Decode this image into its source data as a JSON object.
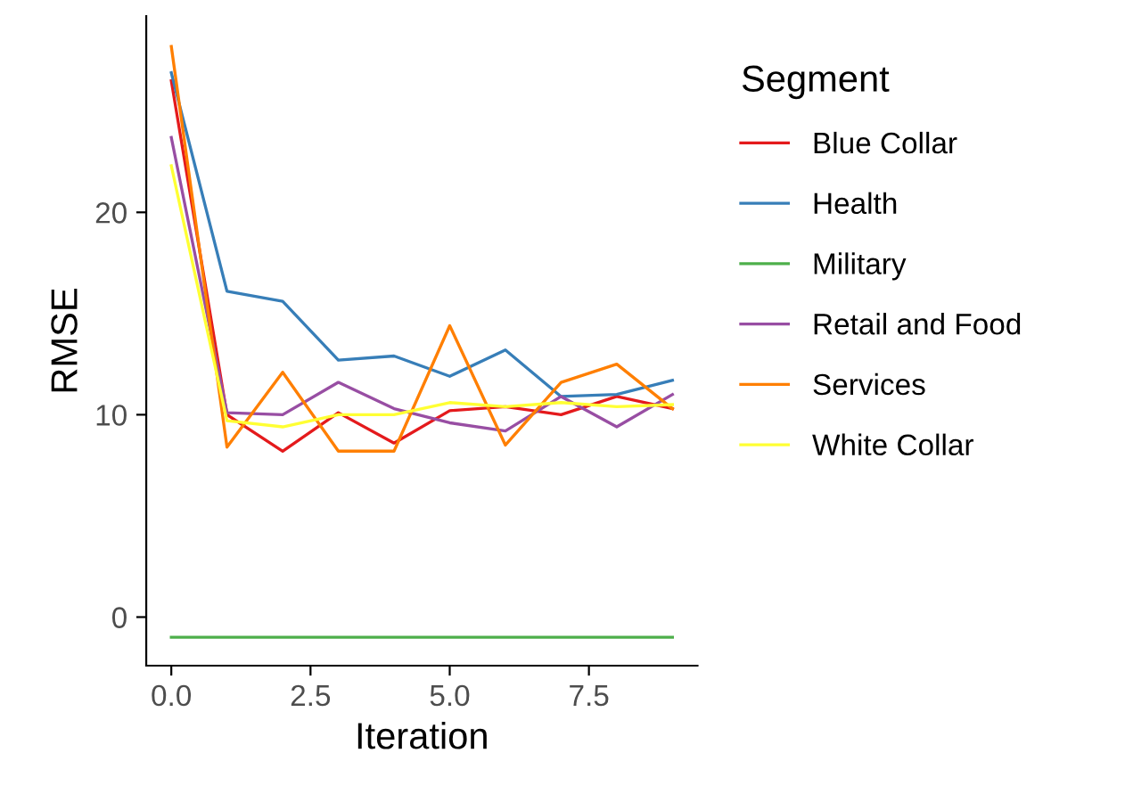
{
  "chart_data": {
    "type": "line",
    "xlabel": "Iteration",
    "ylabel": "RMSE",
    "legend_title": "Segment",
    "legend": "right",
    "grid": false,
    "x": [
      0,
      1,
      2,
      3,
      4,
      5,
      6,
      7,
      8,
      9
    ],
    "xlim": [
      -0.45,
      9.45
    ],
    "xticks": [
      {
        "value": 0,
        "label": "0.0"
      },
      2.5,
      {
        "value": 5,
        "label": "5.0"
      },
      7.5
    ],
    "ylim": [
      -2.4,
      29.7
    ],
    "yticks": [
      0,
      10,
      20
    ],
    "series": [
      {
        "name": "Blue Collar",
        "color": "#e41a1c",
        "values": [
          26.5,
          10.0,
          8.2,
          10.1,
          8.6,
          10.2,
          10.4,
          10.0,
          10.9,
          10.3
        ]
      },
      {
        "name": "Health",
        "color": "#377eb8",
        "values": [
          26.9,
          16.1,
          15.6,
          12.7,
          12.9,
          11.9,
          13.2,
          10.9,
          11.0,
          11.7
        ]
      },
      {
        "name": "Military",
        "color": "#4daf4a",
        "values": [
          -1.0,
          -1.0,
          -1.0,
          -1.0,
          -1.0,
          -1.0,
          -1.0,
          -1.0,
          -1.0,
          -1.0
        ]
      },
      {
        "name": "Retail and Food",
        "color": "#984ea3",
        "values": [
          23.7,
          10.1,
          10.0,
          11.6,
          10.3,
          9.6,
          9.2,
          10.9,
          9.4,
          11.0
        ]
      },
      {
        "name": "Services",
        "color": "#ff7f00",
        "values": [
          28.2,
          8.4,
          12.1,
          8.2,
          8.2,
          14.4,
          8.5,
          11.6,
          12.5,
          10.3
        ]
      },
      {
        "name": "White Collar",
        "color": "#ffff33",
        "values": [
          22.3,
          9.7,
          9.4,
          10.0,
          10.0,
          10.6,
          10.4,
          10.6,
          10.4,
          10.5
        ]
      }
    ]
  }
}
